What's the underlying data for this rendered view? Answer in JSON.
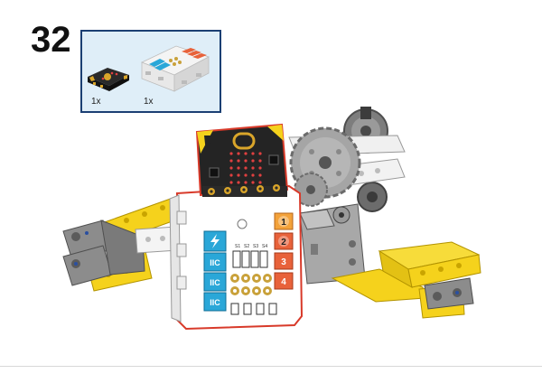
{
  "step": {
    "number": "32"
  },
  "parts": [
    {
      "name": "micro:bit board",
      "qty": "1x"
    },
    {
      "name": "expansion board",
      "qty": "1x"
    }
  ],
  "board": {
    "ports": [
      "1",
      "2",
      "3",
      "4"
    ],
    "port_color": "#e8623a",
    "iic_label": "IIC",
    "pin_labels": [
      "S1",
      "S2",
      "S3",
      "S4"
    ]
  },
  "colors": {
    "lego_yellow": "#f5d21c",
    "lego_gray": "#8c8c8c",
    "lego_dark_gray": "#5b5b5b",
    "accent_blue": "#2aa7d8",
    "box_border": "#1b3f73"
  }
}
